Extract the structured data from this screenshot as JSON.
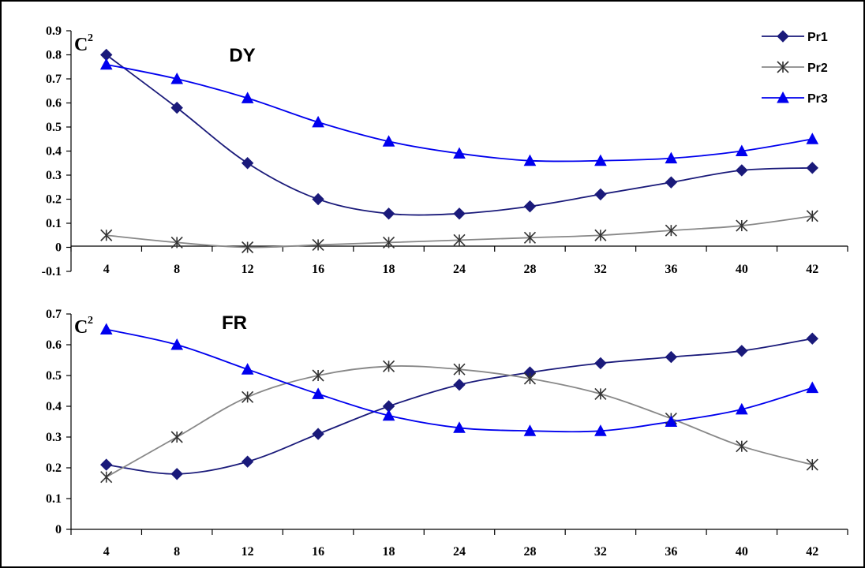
{
  "series_styles": {
    "Pr1": {
      "color": "#1a1a7a",
      "marker": "diamond"
    },
    "Pr2": {
      "color": "#808080",
      "marker": "asterisk"
    },
    "Pr3": {
      "color": "#0000ee",
      "marker": "triangle"
    }
  },
  "legend": [
    "Pr1",
    "Pr2",
    "Pr3"
  ],
  "chart_data": [
    {
      "type": "line",
      "title": "DY",
      "ylabel_main": "C",
      "ylabel_sup": "2",
      "categories": [
        "4",
        "8",
        "12",
        "16",
        "18",
        "24",
        "28",
        "32",
        "36",
        "40",
        "42"
      ],
      "ylim": [
        -0.1,
        0.9
      ],
      "yticks": [
        "-0.1",
        "0",
        "0.1",
        "0.2",
        "0.3",
        "0.4",
        "0.5",
        "0.6",
        "0.7",
        "0.8",
        "0.9"
      ],
      "series": [
        {
          "name": "Pr1",
          "values": [
            0.8,
            0.58,
            0.35,
            0.2,
            0.14,
            0.14,
            0.17,
            0.22,
            0.27,
            0.32,
            0.33
          ]
        },
        {
          "name": "Pr2",
          "values": [
            0.05,
            0.02,
            0.0,
            0.01,
            0.02,
            0.03,
            0.04,
            0.05,
            0.07,
            0.09,
            0.13
          ]
        },
        {
          "name": "Pr3",
          "values": [
            0.76,
            0.7,
            0.62,
            0.52,
            0.44,
            0.39,
            0.36,
            0.36,
            0.37,
            0.4,
            0.45
          ]
        }
      ],
      "legend_position": "top-right"
    },
    {
      "type": "line",
      "title": "FR",
      "ylabel_main": "C",
      "ylabel_sup": "2",
      "categories": [
        "4",
        "8",
        "12",
        "16",
        "18",
        "24",
        "28",
        "32",
        "36",
        "40",
        "42"
      ],
      "ylim": [
        0,
        0.7
      ],
      "yticks": [
        "0",
        "0.1",
        "0.2",
        "0.3",
        "0.4",
        "0.5",
        "0.6",
        "0.7"
      ],
      "series": [
        {
          "name": "Pr1",
          "values": [
            0.21,
            0.18,
            0.22,
            0.31,
            0.4,
            0.47,
            0.51,
            0.54,
            0.56,
            0.58,
            0.62
          ]
        },
        {
          "name": "Pr2",
          "values": [
            0.17,
            0.3,
            0.43,
            0.5,
            0.53,
            0.52,
            0.49,
            0.44,
            0.36,
            0.27,
            0.21
          ]
        },
        {
          "name": "Pr3",
          "values": [
            0.65,
            0.6,
            0.52,
            0.44,
            0.37,
            0.33,
            0.32,
            0.32,
            0.35,
            0.39,
            0.46
          ]
        }
      ]
    }
  ]
}
